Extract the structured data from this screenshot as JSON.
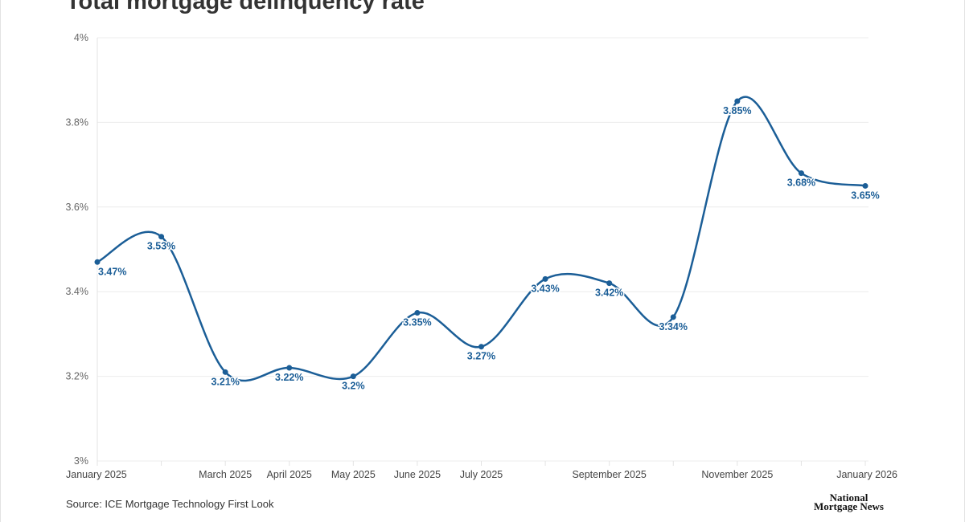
{
  "title": "Total mortgage delinquency rate",
  "source": "Source: ICE Mortgage Technology First Look",
  "logo_text": "National Mortgage News",
  "colors": {
    "line": "#1b5e97",
    "grid": "#ececec"
  },
  "chart_data": {
    "type": "line",
    "title": "Total mortgage delinquency rate",
    "xlabel": "",
    "ylabel": "",
    "ylim": [
      3.0,
      4.0
    ],
    "grid": true,
    "y_ticks": [
      "3%",
      "3.2%",
      "3.4%",
      "3.6%",
      "3.8%",
      "4%"
    ],
    "y_tick_values": [
      3.0,
      3.2,
      3.4,
      3.6,
      3.8,
      4.0
    ],
    "x_tick_labels": [
      "January 2025",
      "",
      "March 2025",
      "April 2025",
      "May 2025",
      "June 2025",
      "July 2025",
      "",
      "September 2025",
      "",
      "November 2025",
      "",
      "January 2026"
    ],
    "x": [
      "2025-01",
      "2025-02",
      "2025-03",
      "2025-04",
      "2025-05",
      "2025-06",
      "2025-07",
      "2025-08",
      "2025-09",
      "2025-10",
      "2025-11",
      "2025-12",
      "2026-01"
    ],
    "values": [
      3.47,
      3.53,
      3.21,
      3.22,
      3.2,
      3.35,
      3.27,
      3.43,
      3.42,
      3.34,
      3.85,
      3.68,
      3.65
    ],
    "data_labels": [
      "3.47%",
      "3.53%",
      "3.21%",
      "3.22%",
      "3.2%",
      "3.35%",
      "3.27%",
      "3.43%",
      "3.42%",
      "3.34%",
      "3.85%",
      "3.68%",
      "3.65%"
    ]
  }
}
